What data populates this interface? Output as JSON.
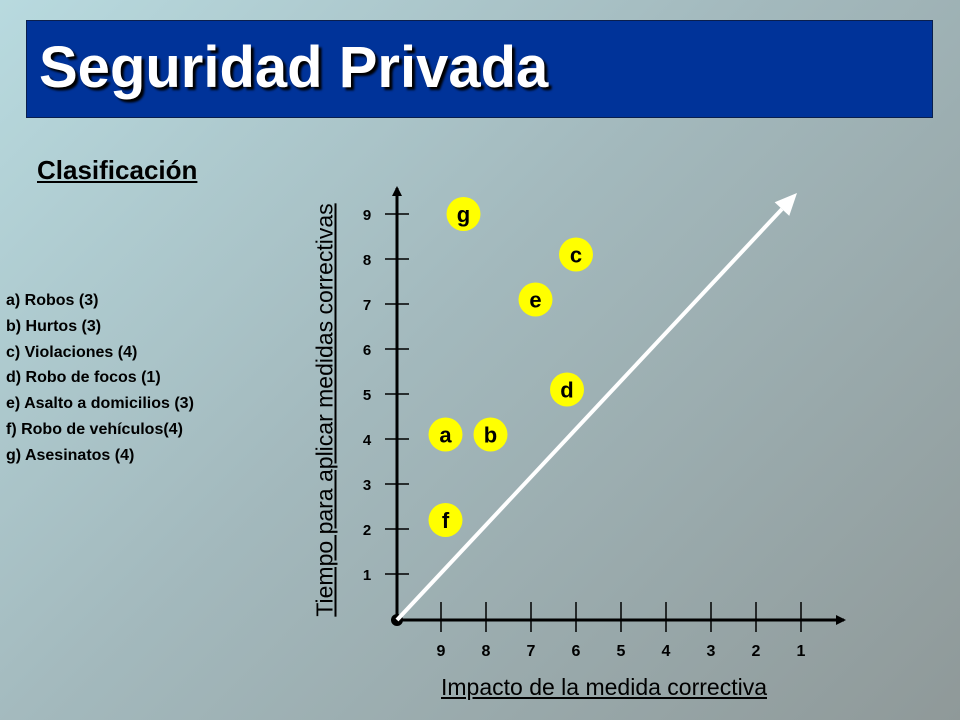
{
  "slide": {
    "title": "Seguridad Privada",
    "subtitle": "Clasificación",
    "legend": [
      "a) Robos (3)",
      "b) Hurtos (3)",
      "c) Violaciones (4)",
      "d) Robo de focos (1)",
      "e) Asalto a domicilios (3)",
      "f) Robo de vehículos(4)",
      "g) Asesinatos (4)"
    ]
  },
  "chart_data": {
    "type": "scatter",
    "xlabel": "Impacto de la medida correctiva",
    "ylabel": "Tiempo para aplicar medidas correctivas",
    "x_ticks": [
      9,
      8,
      7,
      6,
      5,
      4,
      3,
      2,
      1
    ],
    "y_ticks": [
      1,
      2,
      3,
      4,
      5,
      6,
      7,
      8,
      9
    ],
    "x_reversed": true,
    "points": [
      {
        "label": "g",
        "x": 8.5,
        "y": 9.0
      },
      {
        "label": "c",
        "x": 6.0,
        "y": 8.1
      },
      {
        "label": "e",
        "x": 6.9,
        "y": 7.1
      },
      {
        "label": "d",
        "x": 6.2,
        "y": 5.1
      },
      {
        "label": "a",
        "x": 8.9,
        "y": 4.1
      },
      {
        "label": "b",
        "x": 7.9,
        "y": 4.1
      },
      {
        "label": "f",
        "x": 8.9,
        "y": 2.2
      }
    ],
    "colors": {
      "point_fill": "#ffff00",
      "arrow": "#ffffff",
      "axis": "#000000"
    }
  }
}
